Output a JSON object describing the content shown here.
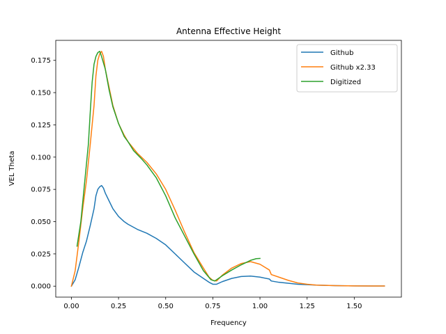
{
  "chart_data": {
    "type": "line",
    "title": "Antenna Effective Height",
    "xlabel": "Frequency",
    "ylabel": "VEL Theta",
    "xlim": [
      -0.083,
      1.75
    ],
    "ylim": [
      -0.0085,
      0.1905
    ],
    "xticks": [
      0.0,
      0.25,
      0.5,
      0.75,
      1.0,
      1.25,
      1.5
    ],
    "xtick_labels": [
      "0.00",
      "0.25",
      "0.50",
      "0.75",
      "1.00",
      "1.25",
      "1.50"
    ],
    "yticks": [
      0.0,
      0.025,
      0.05,
      0.075,
      0.1,
      0.125,
      0.15,
      0.175
    ],
    "ytick_labels": [
      "0.000",
      "0.025",
      "0.050",
      "0.075",
      "0.100",
      "0.125",
      "0.150",
      "0.175"
    ],
    "grid": false,
    "legend_position": "upper right",
    "series": [
      {
        "name": "Github",
        "color": "#1f77b4",
        "points": [
          [
            0.0,
            0.0
          ],
          [
            0.02,
            0.005
          ],
          [
            0.04,
            0.015
          ],
          [
            0.06,
            0.026
          ],
          [
            0.08,
            0.035
          ],
          [
            0.1,
            0.047
          ],
          [
            0.12,
            0.06
          ],
          [
            0.13,
            0.07
          ],
          [
            0.14,
            0.075
          ],
          [
            0.15,
            0.077
          ],
          [
            0.16,
            0.078
          ],
          [
            0.17,
            0.076
          ],
          [
            0.18,
            0.072
          ],
          [
            0.2,
            0.066
          ],
          [
            0.22,
            0.06
          ],
          [
            0.25,
            0.054
          ],
          [
            0.28,
            0.05
          ],
          [
            0.3,
            0.048
          ],
          [
            0.35,
            0.044
          ],
          [
            0.4,
            0.041
          ],
          [
            0.45,
            0.037
          ],
          [
            0.5,
            0.032
          ],
          [
            0.55,
            0.025
          ],
          [
            0.6,
            0.018
          ],
          [
            0.65,
            0.011
          ],
          [
            0.7,
            0.006
          ],
          [
            0.73,
            0.003
          ],
          [
            0.75,
            0.0015
          ],
          [
            0.77,
            0.0015
          ],
          [
            0.8,
            0.0035
          ],
          [
            0.85,
            0.006
          ],
          [
            0.9,
            0.0075
          ],
          [
            0.95,
            0.0078
          ],
          [
            1.0,
            0.007
          ],
          [
            1.05,
            0.0055
          ],
          [
            1.06,
            0.004
          ],
          [
            1.1,
            0.003
          ],
          [
            1.2,
            0.0015
          ],
          [
            1.3,
            0.0008
          ],
          [
            1.4,
            0.0004
          ],
          [
            1.5,
            0.0002
          ],
          [
            1.6,
            0.0001
          ],
          [
            1.66,
            0.0001
          ]
        ]
      },
      {
        "name": "Github x2.33",
        "color": "#ff7f0e",
        "points": [
          [
            0.0,
            0.0
          ],
          [
            0.02,
            0.012
          ],
          [
            0.04,
            0.035
          ],
          [
            0.06,
            0.06
          ],
          [
            0.08,
            0.082
          ],
          [
            0.1,
            0.11
          ],
          [
            0.12,
            0.14
          ],
          [
            0.13,
            0.163
          ],
          [
            0.14,
            0.175
          ],
          [
            0.15,
            0.18
          ],
          [
            0.16,
            0.182
          ],
          [
            0.17,
            0.178
          ],
          [
            0.18,
            0.168
          ],
          [
            0.2,
            0.154
          ],
          [
            0.22,
            0.14
          ],
          [
            0.25,
            0.126
          ],
          [
            0.28,
            0.117
          ],
          [
            0.3,
            0.112
          ],
          [
            0.35,
            0.103
          ],
          [
            0.4,
            0.096
          ],
          [
            0.45,
            0.087
          ],
          [
            0.5,
            0.075
          ],
          [
            0.55,
            0.059
          ],
          [
            0.6,
            0.042
          ],
          [
            0.65,
            0.026
          ],
          [
            0.7,
            0.014
          ],
          [
            0.73,
            0.007
          ],
          [
            0.75,
            0.0045
          ],
          [
            0.77,
            0.004
          ],
          [
            0.8,
            0.0085
          ],
          [
            0.85,
            0.014
          ],
          [
            0.9,
            0.0175
          ],
          [
            0.95,
            0.019
          ],
          [
            1.0,
            0.017
          ],
          [
            1.05,
            0.0125
          ],
          [
            1.06,
            0.009
          ],
          [
            1.1,
            0.007
          ],
          [
            1.15,
            0.0045
          ],
          [
            1.2,
            0.0025
          ],
          [
            1.25,
            0.0015
          ],
          [
            1.3,
            0.0008
          ],
          [
            1.4,
            0.0004
          ],
          [
            1.5,
            0.0002
          ],
          [
            1.6,
            0.0001
          ],
          [
            1.66,
            0.0001
          ]
        ]
      },
      {
        "name": "Digitized",
        "color": "#2ca02c",
        "points": [
          [
            0.03,
            0.031
          ],
          [
            0.05,
            0.05
          ],
          [
            0.07,
            0.08
          ],
          [
            0.09,
            0.11
          ],
          [
            0.1,
            0.135
          ],
          [
            0.11,
            0.158
          ],
          [
            0.12,
            0.172
          ],
          [
            0.13,
            0.178
          ],
          [
            0.14,
            0.181
          ],
          [
            0.15,
            0.182
          ],
          [
            0.16,
            0.178
          ],
          [
            0.18,
            0.168
          ],
          [
            0.2,
            0.152
          ],
          [
            0.22,
            0.139
          ],
          [
            0.25,
            0.126
          ],
          [
            0.28,
            0.116
          ],
          [
            0.3,
            0.112
          ],
          [
            0.33,
            0.105
          ],
          [
            0.37,
            0.099
          ],
          [
            0.4,
            0.094
          ],
          [
            0.45,
            0.084
          ],
          [
            0.5,
            0.07
          ],
          [
            0.55,
            0.053
          ],
          [
            0.6,
            0.039
          ],
          [
            0.65,
            0.025
          ],
          [
            0.7,
            0.012
          ],
          [
            0.74,
            0.005
          ],
          [
            0.76,
            0.004
          ],
          [
            0.8,
            0.008
          ],
          [
            0.85,
            0.0125
          ],
          [
            0.9,
            0.0165
          ],
          [
            0.95,
            0.02
          ],
          [
            0.98,
            0.0213
          ],
          [
            1.0,
            0.0215
          ]
        ]
      }
    ]
  }
}
